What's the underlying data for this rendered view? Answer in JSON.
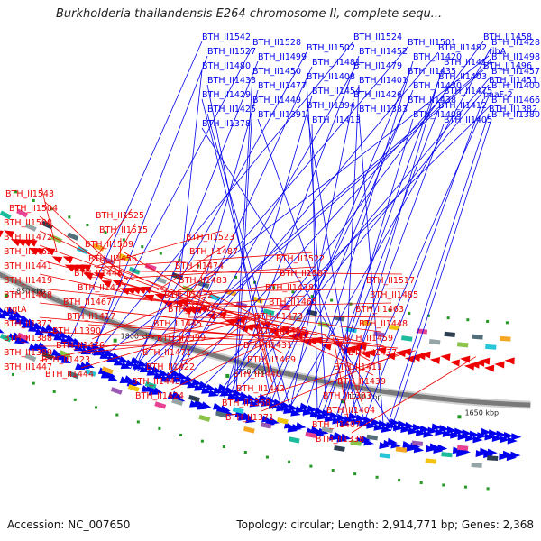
{
  "title": "Burkholderia thailandensis E264 chromosome II, complete sequ...",
  "footer": {
    "accession": "Accession: NC_007650",
    "summary": "Topology: circular; Length: 2,914,771 bp; Genes: 2,368"
  },
  "colors": {
    "forward": "#0000ee",
    "reverse": "#ee0000",
    "backbone": "#8a8a8a",
    "tick": "#229922"
  },
  "scale_ticks": [
    {
      "label": "1850 kbp",
      "pos_kbp": 1850
    },
    {
      "label": "1800 kbp",
      "pos_kbp": 1800
    },
    {
      "label": "1750 kbp",
      "pos_kbp": 1750
    },
    {
      "label": "1700 kbp",
      "pos_kbp": 1700
    },
    {
      "label": "1650 kbp",
      "pos_kbp": 1650
    }
  ],
  "forward_genes": [
    {
      "label": "BTH_II1542",
      "pos_kbp": 1818
    },
    {
      "label": "BTH_II1528",
      "pos_kbp": 1808
    },
    {
      "label": "BTH_II1502",
      "pos_kbp": 1790
    },
    {
      "label": "BTH_II1524",
      "pos_kbp": 1806
    },
    {
      "label": "BTH_II1501",
      "pos_kbp": 1789
    },
    {
      "label": "BTH_II1482",
      "pos_kbp": 1775
    },
    {
      "label": "BTH_II1458",
      "pos_kbp": 1752
    },
    {
      "label": "BTH_II1428",
      "pos_kbp": 1722
    },
    {
      "label": "BTH_II1527",
      "pos_kbp": 1807
    },
    {
      "label": "BTH_II1499",
      "pos_kbp": 1788
    },
    {
      "label": "BTH_II1481",
      "pos_kbp": 1774
    },
    {
      "label": "BTH_II1452",
      "pos_kbp": 1747
    },
    {
      "label": "BTH_II1420",
      "pos_kbp": 1715
    },
    {
      "label": "BTH_II1414",
      "pos_kbp": 1710
    },
    {
      "label": "ribA",
      "pos_kbp": 1803
    },
    {
      "label": "BTH_II1498",
      "pos_kbp": 1787
    },
    {
      "label": "BTH_II1480",
      "pos_kbp": 1773
    },
    {
      "label": "BTH_II1450",
      "pos_kbp": 1745
    },
    {
      "label": "BTH_II1408",
      "pos_kbp": 1705
    },
    {
      "label": "BTH_II1479",
      "pos_kbp": 1771
    },
    {
      "label": "BTH_II1435",
      "pos_kbp": 1730
    },
    {
      "label": "BTH_II1403",
      "pos_kbp": 1700
    },
    {
      "label": "BTH_II1496",
      "pos_kbp": 1785
    },
    {
      "label": "BTH_II1457",
      "pos_kbp": 1751
    },
    {
      "label": "BTH_II1433",
      "pos_kbp": 1728
    },
    {
      "label": "BTH_II1477",
      "pos_kbp": 1770
    },
    {
      "label": "BTH_II1454",
      "pos_kbp": 1749
    },
    {
      "label": "BTH_II1401",
      "pos_kbp": 1698
    },
    {
      "label": "BTH_II1430",
      "pos_kbp": 1725
    },
    {
      "label": "BTH_II1475",
      "pos_kbp": 1768
    },
    {
      "label": "BTH_II1451",
      "pos_kbp": 1746
    },
    {
      "label": "BTH_II1400",
      "pos_kbp": 1697
    },
    {
      "label": "BTH_II1429",
      "pos_kbp": 1724
    },
    {
      "label": "BTH_II1449",
      "pos_kbp": 1744
    },
    {
      "label": "BTH_II1394",
      "pos_kbp": 1692
    },
    {
      "label": "BTH_II1426",
      "pos_kbp": 1721
    },
    {
      "label": "BTH_II1438",
      "pos_kbp": 1733
    },
    {
      "label": "BTH_II1412",
      "pos_kbp": 1708
    },
    {
      "label": "paaF-2",
      "pos_kbp": 1690
    },
    {
      "label": "BTH_II1466",
      "pos_kbp": 1760
    },
    {
      "label": "BTH_II1425",
      "pos_kbp": 1720
    },
    {
      "label": "BTH_II1391",
      "pos_kbp": 1688
    },
    {
      "label": "BTH_II1413",
      "pos_kbp": 1709
    },
    {
      "label": "BTH_II1383",
      "pos_kbp": 1681
    },
    {
      "label": "BTH_II1409",
      "pos_kbp": 1706
    },
    {
      "label": "BTH_II1405",
      "pos_kbp": 1702
    },
    {
      "label": "BTH_II1382",
      "pos_kbp": 1680
    },
    {
      "label": "BTH_II1380",
      "pos_kbp": 1678
    },
    {
      "label": "BTH_II1378",
      "pos_kbp": 1676
    }
  ],
  "reverse_genes": [
    {
      "label": "BTH_II1543",
      "pos_kbp": 1838
    },
    {
      "label": "BTH_II1525",
      "pos_kbp": 1822
    },
    {
      "label": "BTH_II1523",
      "pos_kbp": 1820
    },
    {
      "label": "BTH_II1522",
      "pos_kbp": 1819
    },
    {
      "label": "BTH_II1517",
      "pos_kbp": 1815
    },
    {
      "label": "BTH_II1504",
      "pos_kbp": 1804
    },
    {
      "label": "BTH_II1515",
      "pos_kbp": 1813
    },
    {
      "label": "BTH_II1487",
      "pos_kbp": 1790
    },
    {
      "label": "BTH_II1507",
      "pos_kbp": 1806
    },
    {
      "label": "BTH_II1485",
      "pos_kbp": 1788
    },
    {
      "label": "BTH_II1508",
      "pos_kbp": 1807
    },
    {
      "label": "BTH_II1509",
      "pos_kbp": 1808
    },
    {
      "label": "BTH_II1474",
      "pos_kbp": 1776
    },
    {
      "label": "BTH_II1478",
      "pos_kbp": 1779
    },
    {
      "label": "BTH_II1463",
      "pos_kbp": 1766
    },
    {
      "label": "BTH_II1472",
      "pos_kbp": 1774
    },
    {
      "label": "BTH_II1456",
      "pos_kbp": 1760
    },
    {
      "label": "BTH_II1483",
      "pos_kbp": 1784
    },
    {
      "label": "BTH_II1465",
      "pos_kbp": 1768
    },
    {
      "label": "BTH_II1448",
      "pos_kbp": 1752
    },
    {
      "label": "BTH_II1462",
      "pos_kbp": 1764
    },
    {
      "label": "BTH_II1446",
      "pos_kbp": 1750
    },
    {
      "label": "BTH_II1432",
      "pos_kbp": 1736
    },
    {
      "label": "BTH_II1473",
      "pos_kbp": 1775
    },
    {
      "label": "BTH_II1459",
      "pos_kbp": 1762
    },
    {
      "label": "BTH_II1441",
      "pos_kbp": 1744
    },
    {
      "label": "BTH_II1427",
      "pos_kbp": 1731
    },
    {
      "label": "BTH_II1470",
      "pos_kbp": 1772
    },
    {
      "label": "BTH_II1455",
      "pos_kbp": 1758
    },
    {
      "label": "BTH_II1437",
      "pos_kbp": 1740
    },
    {
      "label": "BTH_II1419",
      "pos_kbp": 1722
    },
    {
      "label": "BTH_II1467",
      "pos_kbp": 1769
    },
    {
      "label": "BTH_II1445",
      "pos_kbp": 1748
    },
    {
      "label": "BTH_II1431",
      "pos_kbp": 1735
    },
    {
      "label": "BTH_II1411",
      "pos_kbp": 1713
    },
    {
      "label": "BTH_II1468",
      "pos_kbp": 1770
    },
    {
      "label": "BTH_II1417",
      "pos_kbp": 1720
    },
    {
      "label": "BTH_II1399",
      "pos_kbp": 1703
    },
    {
      "label": "BTH_II1469",
      "pos_kbp": 1771
    },
    {
      "label": "BTH_II1439",
      "pos_kbp": 1742
    },
    {
      "label": "mgtA",
      "pos_kbp": 1716
    },
    {
      "label": "BTH_II1390",
      "pos_kbp": 1694
    },
    {
      "label": "BTH_II1471",
      "pos_kbp": 1773
    },
    {
      "label": "BTH_II1440",
      "pos_kbp": 1743
    },
    {
      "label": "BTH_II1393",
      "pos_kbp": 1697
    },
    {
      "label": "BTH_II1377",
      "pos_kbp": 1680
    },
    {
      "label": "BTH_II1476",
      "pos_kbp": 1777
    },
    {
      "label": "BTH_II1422",
      "pos_kbp": 1725
    },
    {
      "label": "BTH_II1442",
      "pos_kbp": 1745
    },
    {
      "label": "BTH_II1404",
      "pos_kbp": 1707
    },
    {
      "label": "BTH_II1388",
      "pos_kbp": 1692
    },
    {
      "label": "BTH_II1423",
      "pos_kbp": 1726
    },
    {
      "label": "BTH_II1443",
      "pos_kbp": 1746
    },
    {
      "label": "BTH_II1368",
      "pos_kbp": 1672
    },
    {
      "label": "BTH_II1407",
      "pos_kbp": 1709
    },
    {
      "label": "BTH_II1389",
      "pos_kbp": 1693
    },
    {
      "label": "BTH_II1444",
      "pos_kbp": 1747
    },
    {
      "label": "BTH_II1424",
      "pos_kbp": 1727
    },
    {
      "label": "BTH_II1371",
      "pos_kbp": 1675
    },
    {
      "label": "BTH_II1338",
      "pos_kbp": 1645
    },
    {
      "label": "BTH_II1447",
      "pos_kbp": 1749
    }
  ]
}
